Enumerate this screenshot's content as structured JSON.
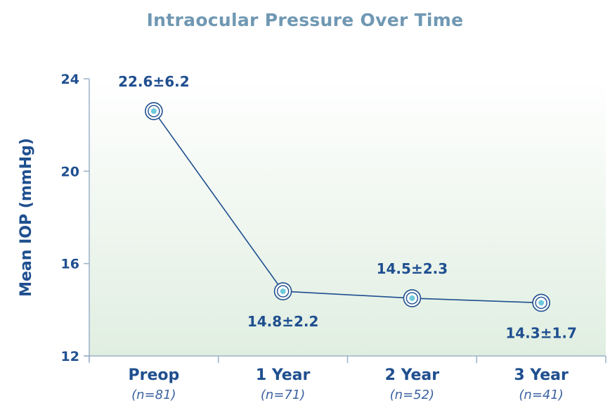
{
  "chart_data": {
    "type": "line",
    "title": "Intraocular Pressure Over Time",
    "xlabel": "",
    "ylabel": "Mean IOP (mmHg)",
    "ylim": [
      12,
      24
    ],
    "yticks": [
      "12",
      "16",
      "20",
      "24"
    ],
    "categories": [
      "Preop",
      "1 Year",
      "2 Year",
      "3 Year"
    ],
    "sample_sizes": [
      "(n=81)",
      "(n=71)",
      "(n=52)",
      "(n=41)"
    ],
    "series": [
      {
        "name": "Mean IOP",
        "values": [
          22.6,
          14.8,
          14.5,
          14.3
        ]
      }
    ],
    "data_labels": [
      "22.6±6.2",
      "14.8±2.2",
      "14.5±2.3",
      "14.3±1.7"
    ],
    "grid": false,
    "colors": {
      "line": "#1f4f8f",
      "marker_center": "#6fcadb",
      "title": "#7098b3",
      "bg_bottom": "#e0eee1"
    }
  }
}
